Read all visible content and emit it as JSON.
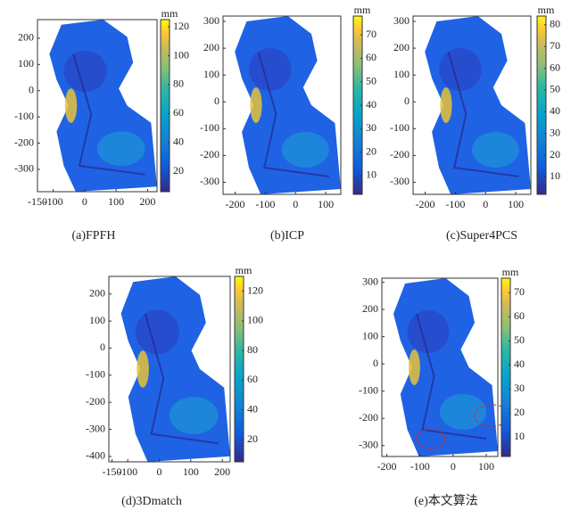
{
  "chart_data": [
    {
      "type": "image",
      "caption": "(a)FPFH",
      "xlim": [
        -150,
        230
      ],
      "xticks": [
        -150,
        -100,
        0,
        100,
        200
      ],
      "ylim": [
        -385,
        271
      ],
      "yticks": [
        -300,
        -200,
        -100,
        0,
        100,
        200
      ],
      "colorbar_label": "mm",
      "colorbar_lim": [
        6,
        125
      ],
      "colorbar_ticks": [
        20,
        40,
        60,
        80,
        100,
        120
      ]
    },
    {
      "type": "image",
      "caption": "(b)ICP",
      "xlim": [
        -240,
        150
      ],
      "xticks": [
        -200,
        -100,
        0,
        100
      ],
      "ylim": [
        -345,
        320
      ],
      "yticks": [
        -300,
        -200,
        -100,
        0,
        100,
        200,
        300
      ],
      "colorbar_label": "mm",
      "colorbar_lim": [
        2,
        78
      ],
      "colorbar_ticks": [
        10,
        20,
        30,
        40,
        50,
        60,
        70
      ]
    },
    {
      "type": "image",
      "caption": "(c)Super4PCS",
      "xlim": [
        -240,
        150
      ],
      "xticks": [
        -200,
        -100,
        0,
        100
      ],
      "ylim": [
        -345,
        320
      ],
      "yticks": [
        -300,
        -200,
        -100,
        0,
        100,
        200,
        300
      ],
      "colorbar_label": "mm",
      "colorbar_lim": [
        2,
        84
      ],
      "colorbar_ticks": [
        10,
        20,
        30,
        40,
        50,
        60,
        70,
        80
      ]
    },
    {
      "type": "image",
      "caption": "(d)3Dmatch",
      "xlim": [
        -160,
        225
      ],
      "xticks": [
        -150,
        -100,
        0,
        100,
        200
      ],
      "ylim": [
        -420,
        265
      ],
      "yticks": [
        -400,
        -300,
        -200,
        -100,
        0,
        100,
        200
      ],
      "colorbar_label": "mm",
      "colorbar_lim": [
        5,
        130
      ],
      "colorbar_ticks": [
        20,
        40,
        60,
        80,
        100,
        120
      ]
    },
    {
      "type": "image",
      "caption": "(e)本文算法",
      "xlim": [
        -215,
        135
      ],
      "xticks": [
        -200,
        -100,
        0,
        100
      ],
      "ylim": [
        -340,
        315
      ],
      "yticks": [
        -300,
        -200,
        -100,
        0,
        100,
        200,
        300
      ],
      "colorbar_label": "mm",
      "colorbar_lim": [
        2,
        76
      ],
      "colorbar_ticks": [
        10,
        20,
        30,
        40,
        50,
        60,
        70
      ]
    }
  ]
}
